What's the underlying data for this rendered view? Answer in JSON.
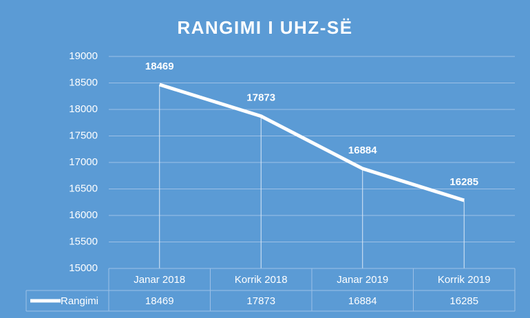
{
  "chart_data": {
    "type": "line",
    "title": "RANGIMI I UHZ-SË",
    "categories": [
      "Janar 2018",
      "Korrik 2018",
      "Janar 2019",
      "Korrik 2019"
    ],
    "series": [
      {
        "name": "Rangimi",
        "color": "#ffffff",
        "values": [
          18469,
          17873,
          16884,
          16285
        ]
      }
    ],
    "ylim": [
      15000,
      19000
    ],
    "yticks": [
      15000,
      15500,
      16000,
      16500,
      17000,
      17500,
      18000,
      18500,
      19000
    ],
    "grid": true,
    "drop_lines": true,
    "data_table": true,
    "background": "#5b9bd5"
  }
}
